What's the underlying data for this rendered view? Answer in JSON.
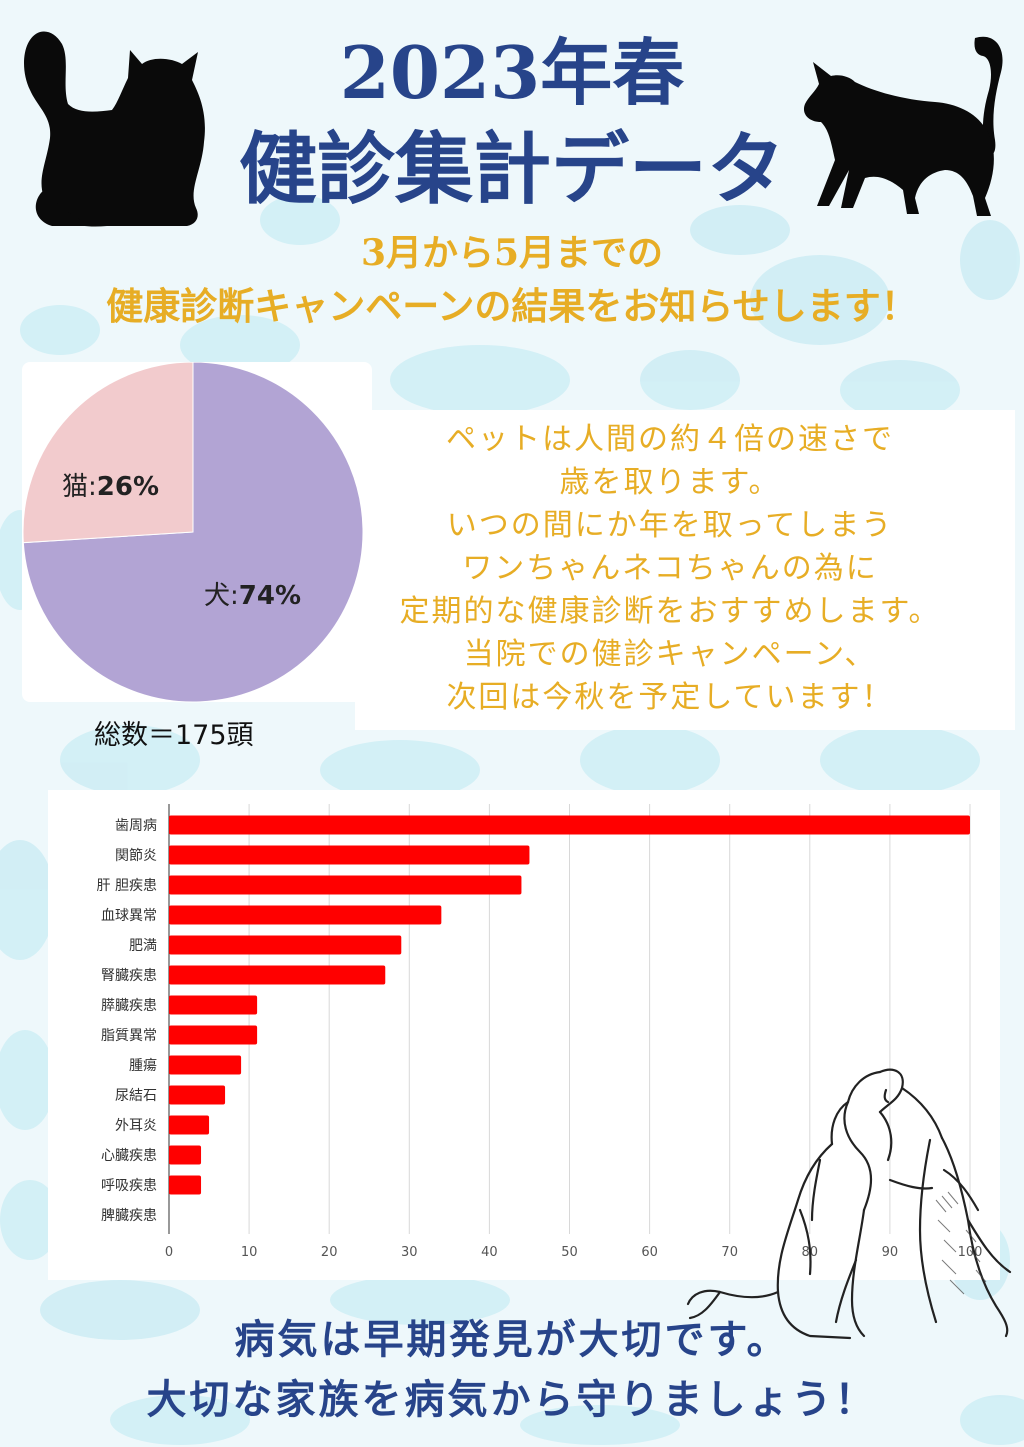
{
  "header": {
    "title_line1": "2023年春",
    "title_line2": "健診集計データ",
    "subtitle_line1": "3月から5月までの",
    "subtitle_line2": "健康診断キャンペーンの結果をお知らせします！"
  },
  "message": {
    "lines": [
      "ペットは人間の約４倍の速さで",
      "歳を取ります。",
      "いつの間にか年を取ってしまう",
      "ワンちゃんネコちゃんの為に",
      "定期的な健康診断をおすすめします。",
      "当院での健診キャンペーン、",
      "次回は今秋を予定しています！"
    ]
  },
  "footer": {
    "line1": "病気は早期発見が大切です。",
    "line2": "大切な家族を病気から守りましょう！"
  },
  "colors": {
    "title": "#27448a",
    "accent": "#e7ad25",
    "bar": "#ff0000",
    "pie_dog": "#b2a4d4",
    "pie_cat": "#f2cbcd"
  },
  "chart_data": [
    {
      "type": "pie",
      "slices": [
        {
          "label": "犬",
          "value": 74,
          "display": "74%"
        },
        {
          "label": "猫",
          "value": 26,
          "display": "26%"
        }
      ],
      "note": "総数＝175頭"
    },
    {
      "type": "bar",
      "orientation": "horizontal",
      "categories": [
        "歯周病",
        "関節炎",
        "肝 胆疾患",
        "血球異常",
        "肥満",
        "腎臓疾患",
        "膵臓疾患",
        "脂質異常",
        "腫瘍",
        "尿結石",
        "外耳炎",
        "心臓疾患",
        "呼吸疾患",
        "脾臓疾患"
      ],
      "values": [
        100,
        45,
        44,
        34,
        29,
        27,
        11,
        11,
        9,
        7,
        5,
        4,
        4,
        0
      ],
      "xlim": [
        0,
        100
      ],
      "xticks": [
        0,
        10,
        20,
        30,
        40,
        50,
        60,
        70,
        80,
        90,
        100
      ],
      "grid": true
    }
  ]
}
